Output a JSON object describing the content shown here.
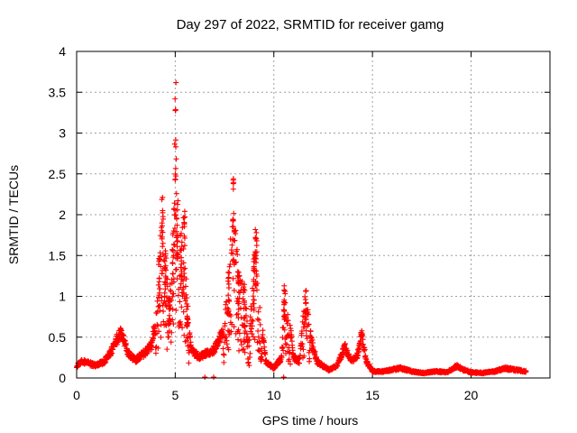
{
  "chart_data": {
    "type": "scatter",
    "title": "Day 297 of 2022, SRMTID for receiver gamg",
    "xlabel": "GPS time / hours",
    "ylabel": "SRMTID / TECUs",
    "xlim": [
      0,
      24
    ],
    "ylim": [
      0,
      4
    ],
    "xticks": [
      0,
      5,
      10,
      15,
      20
    ],
    "yticks": [
      0,
      0.5,
      1,
      1.5,
      2,
      2.5,
      3,
      3.5,
      4
    ],
    "xtick_labels": [
      "0",
      "5",
      "10",
      "15",
      "20"
    ],
    "ytick_labels": [
      "0",
      "0.5",
      "1",
      "1.5",
      "2",
      "2.5",
      "3",
      "3.5",
      "4"
    ],
    "grid": true,
    "marker": "+",
    "marker_color": "#ff0000",
    "series": [
      {
        "name": "SRMTID",
        "envelope": [
          [
            0.0,
            0.15
          ],
          [
            0.3,
            0.2
          ],
          [
            0.6,
            0.18
          ],
          [
            1.0,
            0.15
          ],
          [
            1.4,
            0.2
          ],
          [
            1.8,
            0.35
          ],
          [
            2.2,
            0.55
          ],
          [
            2.4,
            0.45
          ],
          [
            2.6,
            0.3
          ],
          [
            3.0,
            0.22
          ],
          [
            3.4,
            0.3
          ],
          [
            3.8,
            0.4
          ],
          [
            4.0,
            0.7
          ],
          [
            4.2,
            1.5
          ],
          [
            4.35,
            2.3
          ],
          [
            4.5,
            1.6
          ],
          [
            4.7,
            1.0
          ],
          [
            4.9,
            1.8
          ],
          [
            5.0,
            3.62
          ],
          [
            5.1,
            2.2
          ],
          [
            5.3,
            1.9
          ],
          [
            5.45,
            2.05
          ],
          [
            5.6,
            1.0
          ],
          [
            5.8,
            0.35
          ],
          [
            6.2,
            0.25
          ],
          [
            6.6,
            0.3
          ],
          [
            7.0,
            0.35
          ],
          [
            7.4,
            0.55
          ],
          [
            7.7,
            1.3
          ],
          [
            7.95,
            2.52
          ],
          [
            8.2,
            1.3
          ],
          [
            8.5,
            1.15
          ],
          [
            8.75,
            0.6
          ],
          [
            9.0,
            1.5
          ],
          [
            9.1,
            1.85
          ],
          [
            9.3,
            0.8
          ],
          [
            9.6,
            0.2
          ],
          [
            10.0,
            0.12
          ],
          [
            10.4,
            0.25
          ],
          [
            10.55,
            1.15
          ],
          [
            10.8,
            0.7
          ],
          [
            11.0,
            0.25
          ],
          [
            11.3,
            0.2
          ],
          [
            11.6,
            1.12
          ],
          [
            11.9,
            0.45
          ],
          [
            12.2,
            0.2
          ],
          [
            12.8,
            0.1
          ],
          [
            13.2,
            0.15
          ],
          [
            13.6,
            0.38
          ],
          [
            13.9,
            0.2
          ],
          [
            14.2,
            0.25
          ],
          [
            14.45,
            0.52
          ],
          [
            14.7,
            0.2
          ],
          [
            15.0,
            0.08
          ],
          [
            15.6,
            0.08
          ],
          [
            16.0,
            0.1
          ],
          [
            16.4,
            0.12
          ],
          [
            17.0,
            0.08
          ],
          [
            17.6,
            0.06
          ],
          [
            18.2,
            0.08
          ],
          [
            18.8,
            0.07
          ],
          [
            19.3,
            0.15
          ],
          [
            19.6,
            0.1
          ],
          [
            20.0,
            0.07
          ],
          [
            20.6,
            0.06
          ],
          [
            21.2,
            0.08
          ],
          [
            21.7,
            0.12
          ],
          [
            22.2,
            0.1
          ],
          [
            22.8,
            0.08
          ]
        ],
        "outliers": [
          [
            6.95,
            0.01
          ],
          [
            10.5,
            0.01
          ],
          [
            6.5,
            0.01
          ]
        ]
      }
    ]
  }
}
